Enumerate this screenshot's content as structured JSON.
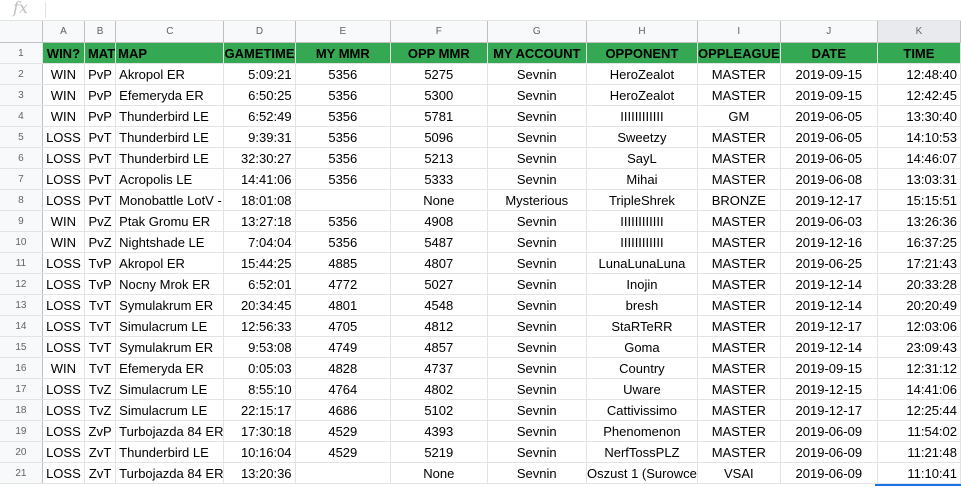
{
  "formula_bar": {
    "fx_label": "fx",
    "content": ""
  },
  "columns": [
    "A",
    "B",
    "C",
    "D",
    "E",
    "F",
    "G",
    "H",
    "I",
    "J",
    "K"
  ],
  "header_row": [
    "WIN?",
    "MAT",
    "MAP",
    "GAMETIME",
    "MY MMR",
    "OPP MMR",
    "MY ACCOUNT",
    "OPPONENT",
    "OPPLEAGUE",
    "DATE",
    "TIME"
  ],
  "row_numbers": [
    "1",
    "2",
    "3",
    "4",
    "5",
    "6",
    "7",
    "8",
    "9",
    "10",
    "11",
    "12",
    "13",
    "14",
    "15",
    "16",
    "17",
    "18",
    "19",
    "20",
    "21"
  ],
  "rows": [
    [
      "WIN",
      "PvP",
      "Akropol ER",
      "5:09:21",
      "5356",
      "5275",
      "Sevnin",
      "HeroZealot",
      "MASTER",
      "2019-09-15",
      "12:48:40"
    ],
    [
      "WIN",
      "PvP",
      "Efemeryda ER",
      "6:50:25",
      "5356",
      "5300",
      "Sevnin",
      "HeroZealot",
      "MASTER",
      "2019-09-15",
      "12:42:45"
    ],
    [
      "WIN",
      "PvP",
      "Thunderbird LE",
      "6:52:49",
      "5356",
      "5781",
      "Sevnin",
      "IIIIIIIIIIII",
      "GM",
      "2019-06-05",
      "13:30:40"
    ],
    [
      "LOSS",
      "PvT",
      "Thunderbird LE",
      "9:39:31",
      "5356",
      "5096",
      "Sevnin",
      "Sweetzy",
      "MASTER",
      "2019-06-05",
      "14:10:53"
    ],
    [
      "LOSS",
      "PvT",
      "Thunderbird LE",
      "32:30:27",
      "5356",
      "5213",
      "Sevnin",
      "SayL",
      "MASTER",
      "2019-06-05",
      "14:46:07"
    ],
    [
      "LOSS",
      "PvT",
      "Acropolis LE",
      "14:41:06",
      "5356",
      "5333",
      "Sevnin",
      "Mihai",
      "MASTER",
      "2019-06-08",
      "13:03:31"
    ],
    [
      "LOSS",
      "PvT",
      "Monobattle LotV - ",
      "18:01:08",
      "",
      "None",
      "Mysterious",
      "TripleShrek",
      "BRONZE",
      "2019-12-17",
      "15:15:51"
    ],
    [
      "WIN",
      "PvZ",
      "Ptak Gromu ER",
      "13:27:18",
      "5356",
      "4908",
      "Sevnin",
      "IIIIIIIIIIII",
      "MASTER",
      "2019-06-03",
      "13:26:36"
    ],
    [
      "WIN",
      "PvZ",
      "Nightshade LE",
      "7:04:04",
      "5356",
      "5487",
      "Sevnin",
      "IIIIIIIIIIII",
      "MASTER",
      "2019-12-16",
      "16:37:25"
    ],
    [
      "LOSS",
      "TvP",
      "Akropol ER",
      "15:44:25",
      "4885",
      "4807",
      "Sevnin",
      "LunaLunaLuna",
      "MASTER",
      "2019-06-25",
      "17:21:43"
    ],
    [
      "LOSS",
      "TvP",
      "Nocny Mrok ER",
      "6:52:01",
      "4772",
      "5027",
      "Sevnin",
      "Inojin",
      "MASTER",
      "2019-12-14",
      "20:33:28"
    ],
    [
      "LOSS",
      "TvT",
      "Symulakrum ER",
      "20:34:45",
      "4801",
      "4548",
      "Sevnin",
      "bresh",
      "MASTER",
      "2019-12-14",
      "20:20:49"
    ],
    [
      "LOSS",
      "TvT",
      "Simulacrum LE",
      "12:56:33",
      "4705",
      "4812",
      "Sevnin",
      "StaRTeRR",
      "MASTER",
      "2019-12-17",
      "12:03:06"
    ],
    [
      "LOSS",
      "TvT",
      "Symulakrum ER",
      "9:53:08",
      "4749",
      "4857",
      "Sevnin",
      "Goma",
      "MASTER",
      "2019-12-14",
      "23:09:43"
    ],
    [
      "WIN",
      "TvT",
      "Efemeryda ER",
      "0:05:03",
      "4828",
      "4737",
      "Sevnin",
      "Country",
      "MASTER",
      "2019-09-15",
      "12:31:12"
    ],
    [
      "LOSS",
      "TvZ",
      "Simulacrum LE",
      "8:55:10",
      "4764",
      "4802",
      "Sevnin",
      "Uware",
      "MASTER",
      "2019-12-15",
      "14:41:06"
    ],
    [
      "LOSS",
      "TvZ",
      "Simulacrum LE",
      "22:15:17",
      "4686",
      "5102",
      "Sevnin",
      "Cattivissimo",
      "MASTER",
      "2019-12-17",
      "12:25:44"
    ],
    [
      "LOSS",
      "ZvP",
      "Turbojazda 84 ER",
      "17:30:18",
      "4529",
      "4393",
      "Sevnin",
      "Phenomenon",
      "MASTER",
      "2019-06-09",
      "11:54:02"
    ],
    [
      "LOSS",
      "ZvT",
      "Thunderbird LE",
      "10:16:04",
      "4529",
      "5219",
      "Sevnin",
      "NerfTossPLZ",
      "MASTER",
      "2019-06-09",
      "11:21:48"
    ],
    [
      "LOSS",
      "ZvT",
      "Turbojazda 84 ER",
      "13:20:36",
      "",
      "None",
      "Sevnin",
      "Oszust 1 (Surowce",
      "VSAI",
      "2019-06-09",
      "11:10:41"
    ]
  ],
  "colors": {
    "header_fill": "#34a853",
    "grid_line": "#e2e3e3",
    "selection": "#1a73e8"
  }
}
